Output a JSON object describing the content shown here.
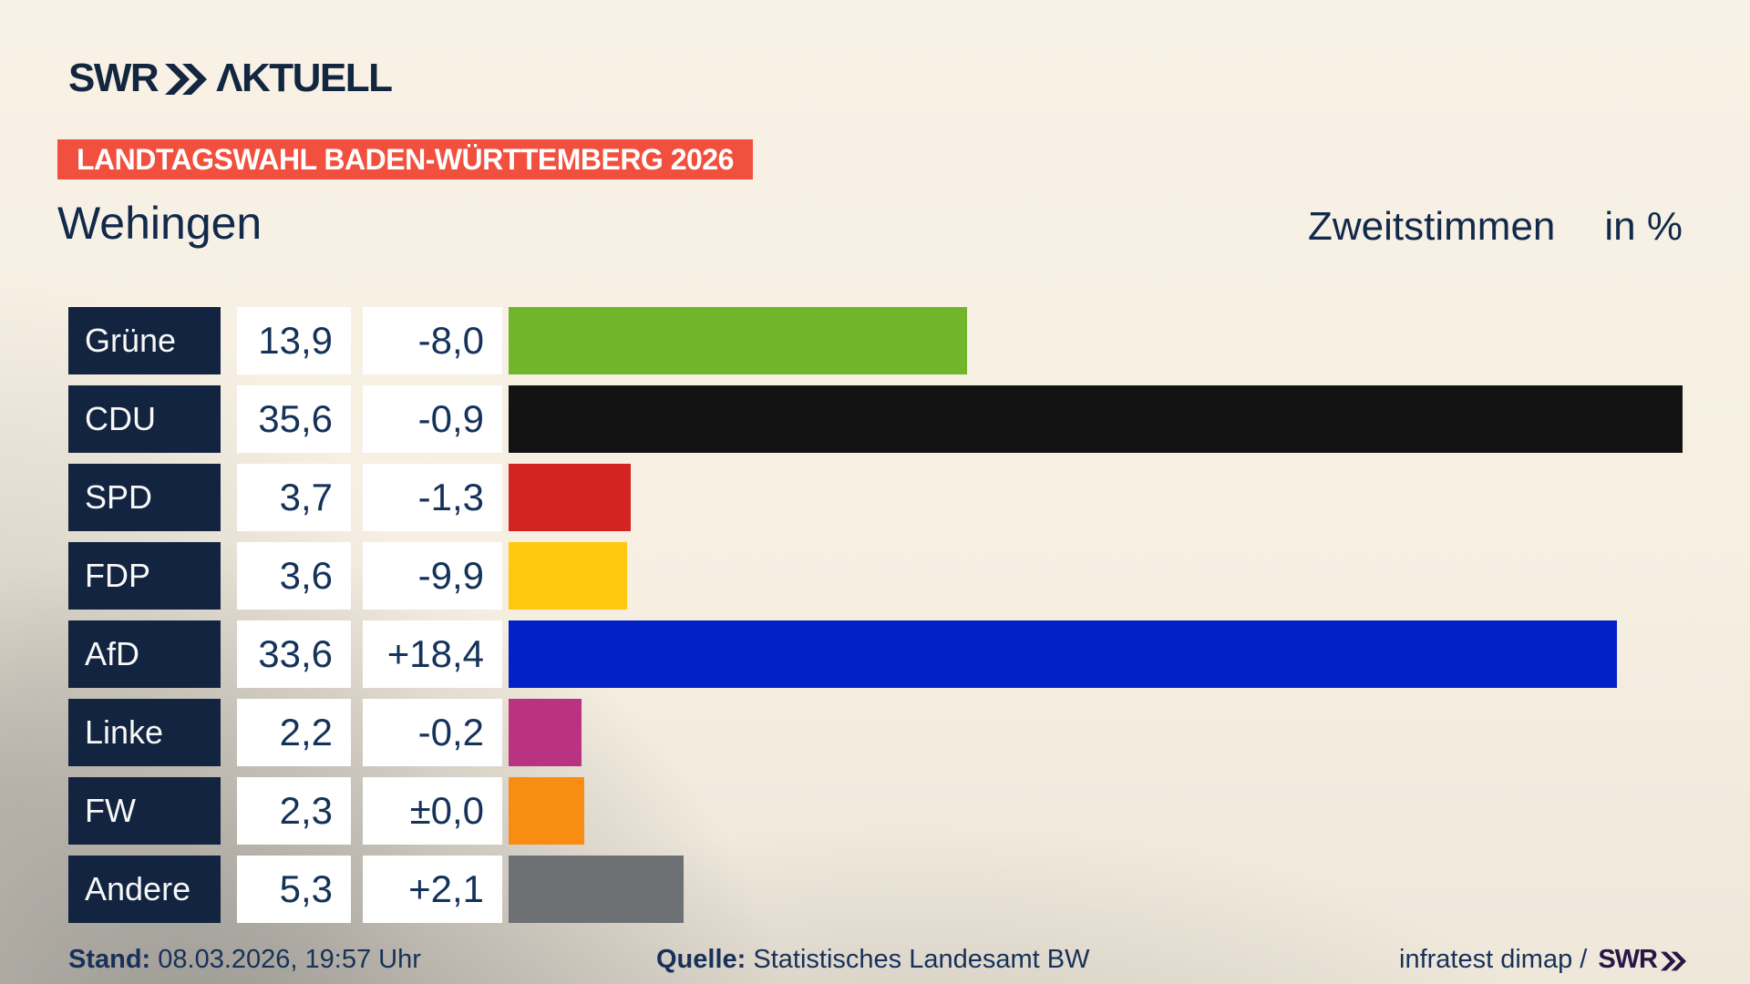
{
  "brand": {
    "logo_text": "SWR",
    "logo_suffix": "ΛKTUELL",
    "navy": "#12263f"
  },
  "banner": {
    "text": "LANDTAGSWAHL BADEN-WÜRTTEMBERG 2026",
    "bg_color": "#f2503e"
  },
  "header": {
    "title": "Wehingen",
    "subtitle": "Zweitstimmen",
    "unit": "in %"
  },
  "chart_data": {
    "type": "bar",
    "orientation": "horizontal",
    "title": "Wehingen",
    "value_axis_label": "Zweitstimmen in %",
    "grid": false,
    "legend": false,
    "xlim": [
      0,
      35.6
    ],
    "categories": [
      "Grüne",
      "CDU",
      "SPD",
      "FDP",
      "AfD",
      "Linke",
      "FW",
      "Andere"
    ],
    "values": [
      13.9,
      35.6,
      3.7,
      3.6,
      33.6,
      2.2,
      2.3,
      5.3
    ],
    "value_labels": [
      "13,9",
      "35,6",
      "3,7",
      "3,6",
      "33,6",
      "2,2",
      "2,3",
      "5,3"
    ],
    "changes": [
      "-8,0",
      "-0,9",
      "-1,3",
      "-9,9",
      "+18,4",
      "-0,2",
      "±0,0",
      "+2,1"
    ],
    "changes_num": [
      -8.0,
      -0.9,
      -1.3,
      -9.9,
      18.4,
      -0.2,
      0.0,
      2.1
    ],
    "bar_colors": [
      "#71b62a",
      "#121212",
      "#d42422",
      "#ffc80c",
      "#0222c8",
      "#ba3381",
      "#f98d13",
      "#6d7174"
    ],
    "label_box_color": "#122440",
    "value_box_color": "#ffffff"
  },
  "footer": {
    "stand_label": "Stand:",
    "stand_value": "08.03.2026, 19:57 Uhr",
    "quelle_label": "Quelle:",
    "quelle_value": "Statistisches Landesamt BW",
    "credit_text": "infratest dimap /",
    "credit_logo": "SWR"
  }
}
